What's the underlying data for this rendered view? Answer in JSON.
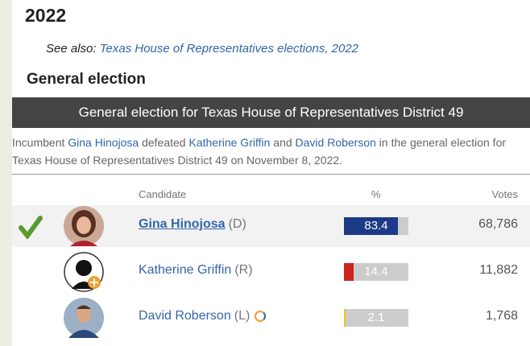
{
  "heading": "2022",
  "see_also": {
    "prefix": "See also:",
    "link": "Texas House of Representatives elections, 2022"
  },
  "section": "General election",
  "table": {
    "title": "General election for Texas House of Representatives District 49",
    "description": [
      {
        "text": "Incumbent ",
        "link": false
      },
      {
        "text": "Gina Hinojosa",
        "link": true
      },
      {
        "text": " defeated ",
        "link": false
      },
      {
        "text": "Katherine Griffin",
        "link": true
      },
      {
        "text": " and ",
        "link": false
      },
      {
        "text": "David Roberson",
        "link": true
      },
      {
        "text": " in the general election for Texas House of Representatives District 49 on November 8, 2022.",
        "link": false
      }
    ],
    "columns": [
      "Candidate",
      "%",
      "Votes"
    ],
    "rows": [
      {
        "name": "Gina Hinojosa",
        "party": "(D)",
        "percent": 83.4,
        "votes": "68,786",
        "winner": true,
        "color": "#1b3a87"
      },
      {
        "name": "Katherine Griffin",
        "party": "(R)",
        "percent": 14.4,
        "votes": "11,882",
        "winner": false,
        "color": "#cc2222"
      },
      {
        "name": "David Roberson",
        "party": "(L)",
        "percent": 2.1,
        "votes": "1,768",
        "winner": false,
        "color": "#f0c419"
      }
    ]
  }
}
